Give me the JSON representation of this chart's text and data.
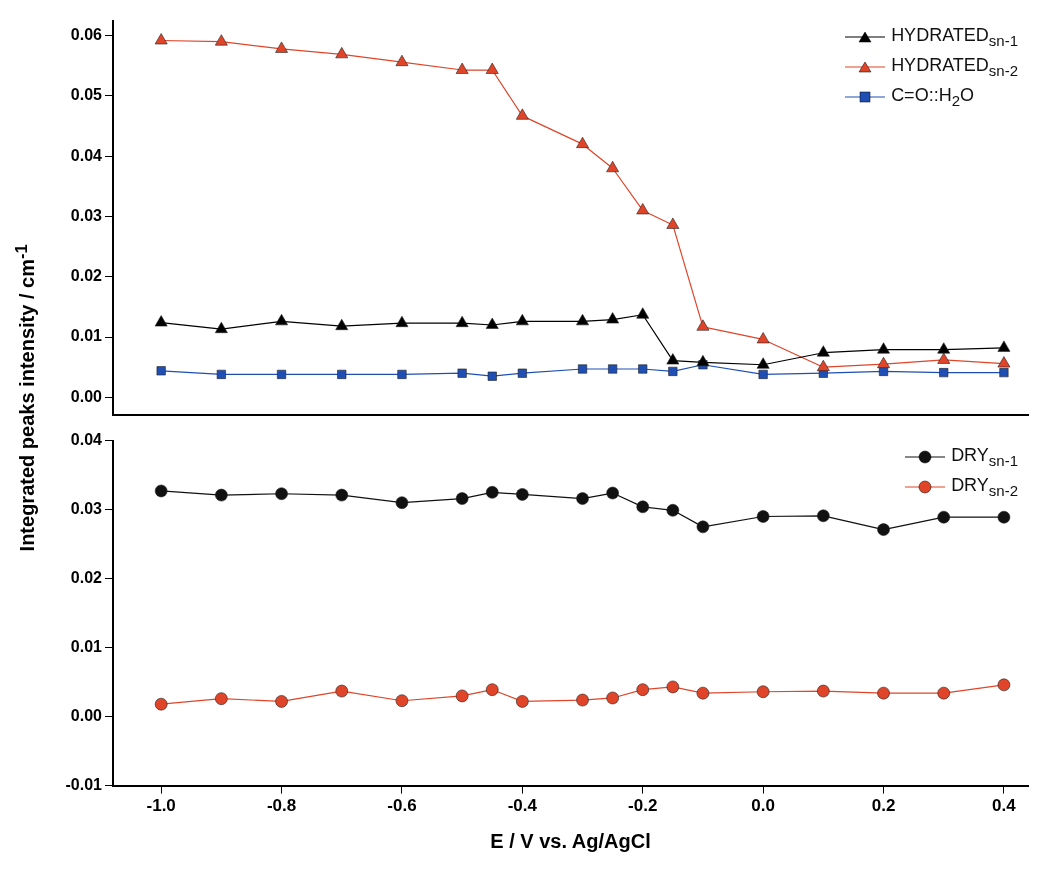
{
  "chart_data": [
    {
      "type": "line",
      "ylabel": "Integrated peaks intensity / cm$^{-1}$",
      "x": [
        -1.0,
        -0.9,
        -0.8,
        -0.7,
        -0.6,
        -0.5,
        -0.45,
        -0.4,
        -0.3,
        -0.25,
        -0.2,
        -0.15,
        -0.1,
        0.0,
        0.1,
        0.2,
        0.3,
        0.4
      ],
      "xlim": [
        -1.08,
        0.44
      ],
      "ylim": [
        -0.003,
        0.0625
      ],
      "yticks": [
        {
          "value": 0,
          "label": "0.00"
        },
        {
          "value": 0.01,
          "label": "0.01"
        },
        {
          "value": 0.02,
          "label": "0.02"
        },
        {
          "value": 0.03,
          "label": "0.03"
        },
        {
          "value": 0.04,
          "label": "0.04"
        },
        {
          "value": 0.05,
          "label": "0.05"
        },
        {
          "value": 0.06,
          "label": "0.06"
        }
      ],
      "tick_labels": "y",
      "legend": "top right",
      "grid": false,
      "series": [
        {
          "name": "HYDRATED$_{sn-1}$",
          "color": "#000000",
          "marker": "triangle",
          "values": [
            0.0124,
            0.0113,
            0.0126,
            0.0118,
            0.0123,
            0.0123,
            0.012,
            0.0126,
            0.0126,
            0.0129,
            0.0137,
            0.0061,
            0.0058,
            0.0054,
            0.0074,
            0.0079,
            0.0079,
            0.0082
          ]
        },
        {
          "name": "HYDRATED$_{sn-2}$",
          "color": "#e0452a",
          "marker": "triangle",
          "values": [
            0.0592,
            0.059,
            0.0578,
            0.0569,
            0.0556,
            0.0543,
            0.0543,
            0.0467,
            0.042,
            0.038,
            0.031,
            0.0286,
            0.0117,
            0.0096,
            0.005,
            0.0055,
            0.0062,
            0.0056
          ]
        },
        {
          "name": "C=O::H$_{2}$O",
          "color": "#1f4fb4",
          "marker": "square",
          "values": [
            0.0044,
            0.0038,
            0.0038,
            0.0038,
            0.0038,
            0.004,
            0.0035,
            0.004,
            0.0047,
            0.0047,
            0.0047,
            0.0043,
            0.0054,
            0.0038,
            0.004,
            0.0043,
            0.0041,
            0.0041
          ]
        }
      ]
    },
    {
      "type": "line",
      "xlabel": "E / V vs. Ag/AgCl",
      "x": [
        -1.0,
        -0.9,
        -0.8,
        -0.7,
        -0.6,
        -0.5,
        -0.45,
        -0.4,
        -0.3,
        -0.25,
        -0.2,
        -0.15,
        -0.1,
        0.0,
        0.1,
        0.2,
        0.3,
        0.4
      ],
      "xlim": [
        -1.08,
        0.44
      ],
      "xticks": [
        {
          "value": -1.0,
          "label": "-1.0"
        },
        {
          "value": -0.8,
          "label": "-0.8"
        },
        {
          "value": -0.6,
          "label": "-0.6"
        },
        {
          "value": -0.4,
          "label": "-0.4"
        },
        {
          "value": -0.2,
          "label": "-0.2"
        },
        {
          "value": 0,
          "label": "0.0"
        },
        {
          "value": 0.2,
          "label": "0.2"
        },
        {
          "value": 0.4,
          "label": "0.4"
        }
      ],
      "ylim": [
        -0.01,
        0.04
      ],
      "yticks": [
        {
          "value": -0.01,
          "label": "-0.01"
        },
        {
          "value": 0,
          "label": "0.00"
        },
        {
          "value": 0.01,
          "label": "0.01"
        },
        {
          "value": 0.02,
          "label": "0.02"
        },
        {
          "value": 0.03,
          "label": "0.03"
        },
        {
          "value": 0.04,
          "label": "0.04"
        }
      ],
      "legend": "top right",
      "grid": false,
      "series": [
        {
          "name": "DRY$_{sn-1}$",
          "color": "#111111",
          "marker": "circle",
          "values": [
            0.0327,
            0.0321,
            0.0323,
            0.0321,
            0.031,
            0.0316,
            0.0325,
            0.0322,
            0.0316,
            0.0324,
            0.0304,
            0.0299,
            0.0275,
            0.029,
            0.0291,
            0.0271,
            0.0289,
            0.0289
          ]
        },
        {
          "name": "DRY$_{sn-2}$",
          "color": "#e0452a",
          "marker": "circle",
          "values": [
            0.0018,
            0.0026,
            0.0022,
            0.0037,
            0.0023,
            0.003,
            0.0039,
            0.0022,
            0.0024,
            0.0027,
            0.0039,
            0.0043,
            0.0034,
            0.0036,
            0.0037,
            0.0034,
            0.0034,
            0.0046
          ]
        }
      ]
    }
  ]
}
